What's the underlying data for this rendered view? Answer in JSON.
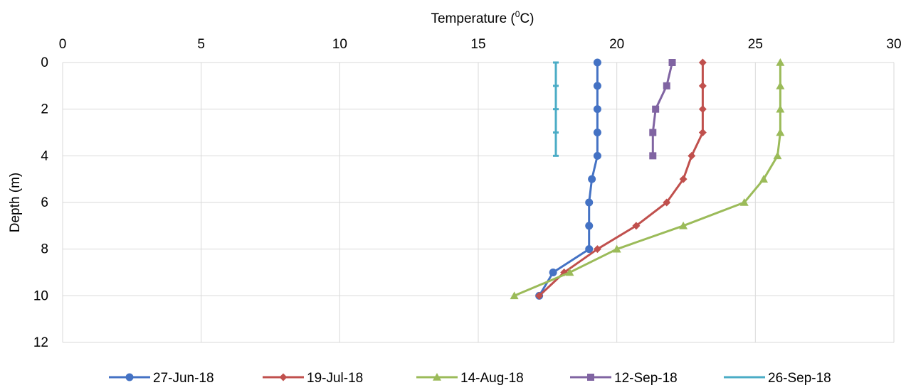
{
  "chart_data": {
    "type": "line",
    "title": "",
    "xlabel_main": "Temperature (",
    "xlabel_sup": "0",
    "xlabel_end": "C)",
    "ylabel": "Depth (m)",
    "xlim": [
      0,
      30
    ],
    "ylim": [
      0,
      12
    ],
    "y_inverted": true,
    "x_axis_position": "top",
    "xticks": [
      0,
      5,
      10,
      15,
      20,
      25,
      30
    ],
    "yticks": [
      0,
      2,
      4,
      6,
      8,
      10,
      12
    ],
    "grid": true,
    "legend_position": "bottom",
    "series": [
      {
        "name": "27-Jun-18",
        "color": "#4472C4",
        "marker": "circle",
        "points": [
          [
            19.3,
            0
          ],
          [
            19.3,
            1
          ],
          [
            19.3,
            2
          ],
          [
            19.3,
            3
          ],
          [
            19.3,
            4
          ],
          [
            19.1,
            5
          ],
          [
            19.0,
            6
          ],
          [
            19.0,
            7
          ],
          [
            19.0,
            8
          ],
          [
            17.7,
            9
          ],
          [
            17.2,
            10
          ]
        ]
      },
      {
        "name": "19-Jul-18",
        "color": "#C0504D",
        "marker": "diamond",
        "points": [
          [
            23.1,
            0
          ],
          [
            23.1,
            1
          ],
          [
            23.1,
            2
          ],
          [
            23.1,
            3
          ],
          [
            22.7,
            4
          ],
          [
            22.4,
            5
          ],
          [
            21.8,
            6
          ],
          [
            20.7,
            7
          ],
          [
            19.3,
            8
          ],
          [
            18.1,
            9
          ],
          [
            17.2,
            10
          ]
        ]
      },
      {
        "name": "14-Aug-18",
        "color": "#9BBB59",
        "marker": "triangle",
        "points": [
          [
            25.9,
            0
          ],
          [
            25.9,
            1
          ],
          [
            25.9,
            2
          ],
          [
            25.9,
            3
          ],
          [
            25.8,
            4
          ],
          [
            25.3,
            5
          ],
          [
            24.6,
            6
          ],
          [
            22.4,
            7
          ],
          [
            20.0,
            8
          ],
          [
            18.3,
            9
          ],
          [
            16.3,
            10
          ]
        ]
      },
      {
        "name": "12-Sep-18",
        "color": "#8064A2",
        "marker": "square",
        "points": [
          [
            22.0,
            0
          ],
          [
            21.8,
            1
          ],
          [
            21.4,
            2
          ],
          [
            21.3,
            3
          ],
          [
            21.3,
            4
          ]
        ]
      },
      {
        "name": "26-Sep-18",
        "color": "#4BACC6",
        "marker": "dash",
        "points": [
          [
            17.8,
            0
          ],
          [
            17.8,
            1
          ],
          [
            17.8,
            2
          ],
          [
            17.8,
            3
          ],
          [
            17.8,
            4
          ]
        ]
      }
    ]
  }
}
